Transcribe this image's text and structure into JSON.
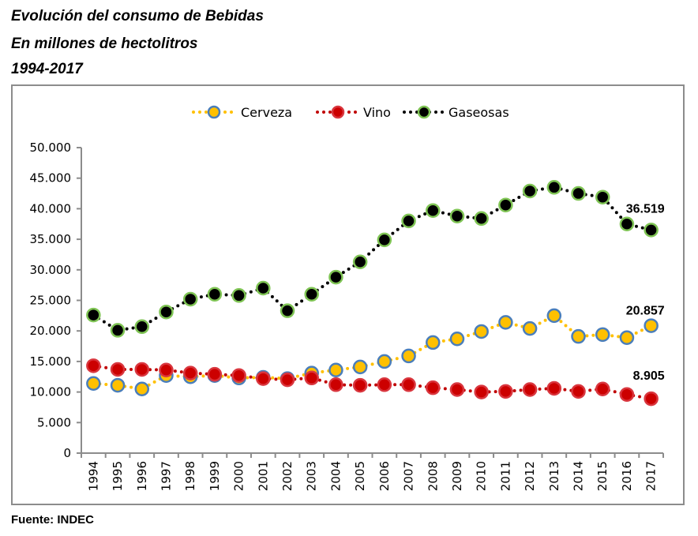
{
  "page": {
    "title_lines": [
      "Evolución del consumo de Bebidas",
      "En millones de hectolitros",
      "1994-2017"
    ],
    "source": "Fuente: INDEC"
  },
  "chart_data": {
    "type": "line",
    "title": "Evolución del consumo de Bebidas",
    "subtitle": "En millones de hectolitros 1994-2017",
    "xlabel": "",
    "ylabel": "",
    "ylim": [
      0,
      50000
    ],
    "yticks": [
      0,
      5000,
      10000,
      15000,
      20000,
      25000,
      30000,
      35000,
      40000,
      45000,
      50000
    ],
    "ytick_labels": [
      "0",
      "5.000",
      "10.000",
      "15.000",
      "20.000",
      "25.000",
      "30.000",
      "35.000",
      "40.000",
      "45.000",
      "50.000"
    ],
    "grid": false,
    "legend_position": "top-center",
    "categories": [
      "1994",
      "1995",
      "1996",
      "1997",
      "1998",
      "1999",
      "2000",
      "2001",
      "2002",
      "2003",
      "2004",
      "2005",
      "2006",
      "2007",
      "2008",
      "2009",
      "2010",
      "2011",
      "2012",
      "2013",
      "2014",
      "2015",
      "2016",
      "2017"
    ],
    "series": [
      {
        "name": "Cerveza",
        "line_color": "#ffc000",
        "marker_fill": "#ffc000",
        "marker_edge": "#4a7ebb",
        "values": [
          11400,
          11100,
          10500,
          12700,
          12500,
          12700,
          12300,
          12400,
          12200,
          13100,
          13600,
          14100,
          15000,
          15900,
          18100,
          18700,
          19900,
          21400,
          20400,
          22500,
          19100,
          19400,
          18900,
          20857
        ],
        "end_label": "20.857"
      },
      {
        "name": "Vino",
        "line_color": "#c00000",
        "marker_fill": "#cc0000",
        "marker_edge": "#d9363e",
        "values": [
          14300,
          13700,
          13700,
          13600,
          13100,
          12900,
          12700,
          12200,
          12000,
          12300,
          11200,
          11100,
          11200,
          11200,
          10700,
          10400,
          10000,
          10100,
          10400,
          10600,
          10100,
          10500,
          9600,
          8905
        ],
        "end_label": "8.905"
      },
      {
        "name": "Gaseosas",
        "line_color": "#000000",
        "marker_fill": "#000000",
        "marker_edge": "#7fc454",
        "values": [
          22600,
          20100,
          20700,
          23100,
          25200,
          26000,
          25800,
          27000,
          23300,
          26000,
          28800,
          31300,
          34900,
          38000,
          39700,
          38800,
          38400,
          40600,
          42900,
          43500,
          42500,
          41900,
          37500,
          36519
        ],
        "end_label": "36.519"
      }
    ]
  }
}
